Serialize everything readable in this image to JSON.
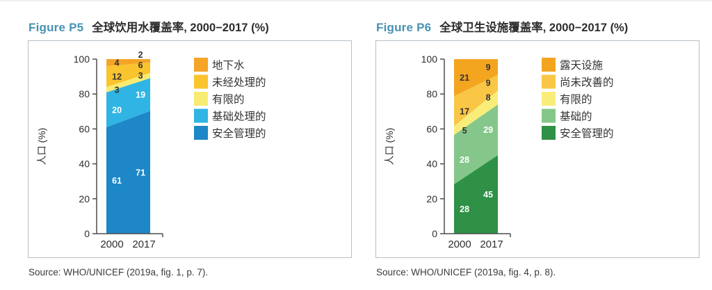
{
  "figures": [
    {
      "figure_label": "Figure P5",
      "source": "Source: WHO/UNICEF (2019a, fig. 1, p. 7)."
    },
    {
      "figure_label": "Figure P6",
      "source": "Source: WHO/UNICEF (2019a, fig. 4, p. 8)."
    }
  ],
  "chart_data": [
    {
      "type": "area",
      "subtype": "stacked-two-point-area",
      "title": "全球饮用水覆盖率, 2000−2017 (%)",
      "x": [
        "2000",
        "2017"
      ],
      "ylabel": "人口 (%)",
      "ylim": [
        0,
        100
      ],
      "y_ticks": [
        0,
        20,
        40,
        60,
        80,
        100
      ],
      "grid": false,
      "legend_position": "right",
      "series": [
        {
          "name": "安全管理的",
          "values": [
            61,
            71
          ],
          "color": "#1E87C7",
          "label_color": "#ffffff"
        },
        {
          "name": "基础处理的",
          "values": [
            20,
            19
          ],
          "color": "#2FB4E4",
          "label_color": "#ffffff"
        },
        {
          "name": "有限的",
          "values": [
            3,
            3
          ],
          "color": "#F7EC71",
          "label_color": "#333333"
        },
        {
          "name": "未经处理的",
          "values": [
            12,
            6
          ],
          "color": "#FAC42F",
          "label_color": "#333333"
        },
        {
          "name": "地下水",
          "values": [
            4,
            2
          ],
          "color": "#F4A426",
          "label_color": "#333333"
        }
      ]
    },
    {
      "type": "area",
      "subtype": "stacked-two-point-area",
      "title": "全球卫生设施覆盖率, 2000−2017 (%)",
      "x": [
        "2000",
        "2017"
      ],
      "ylabel": "人口 (%)",
      "ylim": [
        0,
        100
      ],
      "y_ticks": [
        0,
        20,
        40,
        60,
        80,
        100
      ],
      "grid": false,
      "legend_position": "right",
      "series": [
        {
          "name": "安全管理的",
          "values": [
            28,
            45
          ],
          "color": "#2E9145",
          "label_color": "#ffffff"
        },
        {
          "name": "基础的",
          "values": [
            28,
            29
          ],
          "color": "#85C78A",
          "label_color": "#ffffff"
        },
        {
          "name": "有限的",
          "values": [
            5,
            8
          ],
          "color": "#F8ED79",
          "label_color": "#333333"
        },
        {
          "name": "尚未改善的",
          "values": [
            17,
            9
          ],
          "color": "#FAC645",
          "label_color": "#333333"
        },
        {
          "name": "露天设施",
          "values": [
            21,
            9
          ],
          "color": "#F3A51F",
          "label_color": "#333333"
        }
      ]
    }
  ],
  "colors": {
    "figure_label": "#4792B4",
    "title_text": "#2d2d2d",
    "panel_border": "#b6bfc6",
    "axis": "#4d4d4d",
    "tick_text": "#2e2e2e"
  }
}
